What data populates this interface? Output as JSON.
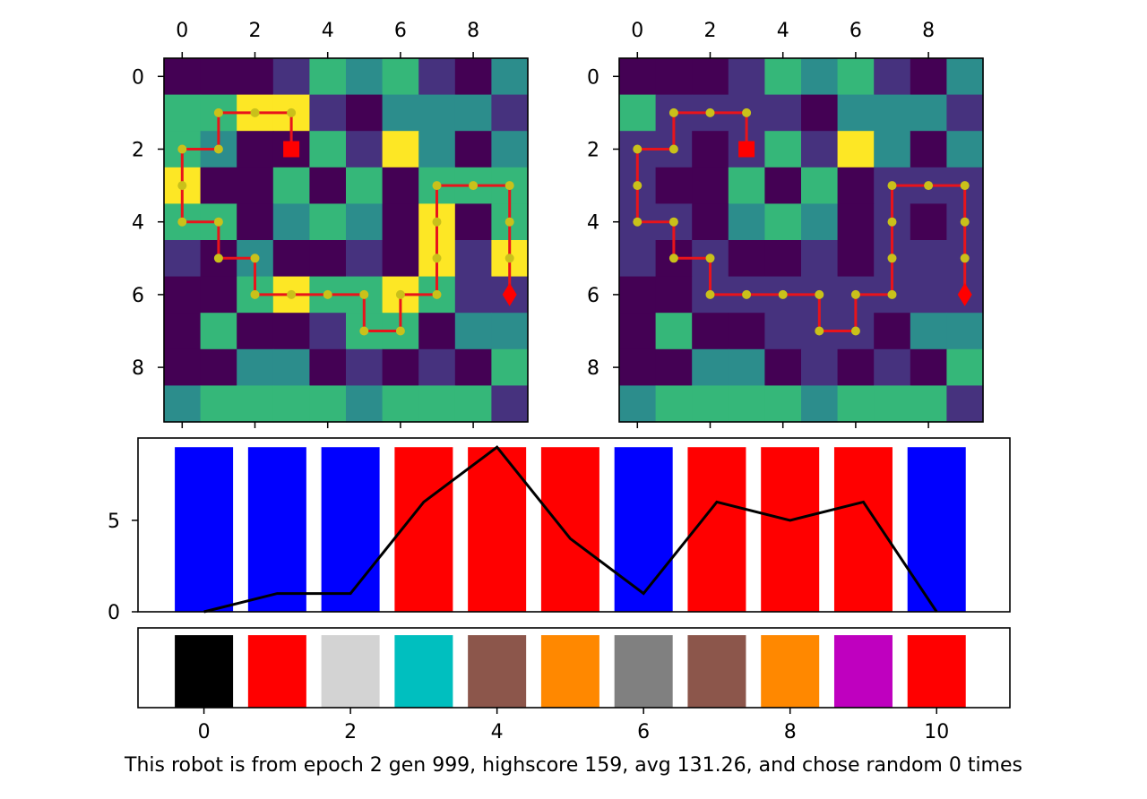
{
  "caption": "This robot is from epoch 2 gen 999, highscore 159, avg 131.26, and chose random 0 times",
  "chart_data": [
    {
      "type": "heatmap",
      "xticks": [
        "0",
        "2",
        "4",
        "6",
        "8"
      ],
      "yticks": [
        "0",
        "2",
        "4",
        "6",
        "8"
      ],
      "colormap": "viridis",
      "vmin": 0,
      "vmax": 4,
      "grid": [
        [
          1,
          1,
          1,
          0,
          3,
          2,
          3,
          0,
          1,
          2
        ],
        [
          3,
          3,
          4,
          4,
          0,
          1,
          2,
          2,
          2,
          0
        ],
        [
          3,
          2,
          1,
          1,
          3,
          0,
          4,
          2,
          1,
          2
        ],
        [
          4,
          1,
          1,
          3,
          1,
          3,
          1,
          3,
          3,
          3
        ],
        [
          3,
          3,
          1,
          2,
          3,
          2,
          1,
          4,
          1,
          3
        ],
        [
          0,
          1,
          2,
          1,
          1,
          0,
          1,
          4,
          0,
          4
        ],
        [
          1,
          1,
          3,
          4,
          3,
          3,
          4,
          3,
          0,
          0
        ],
        [
          1,
          3,
          1,
          1,
          0,
          3,
          3,
          1,
          2,
          2
        ],
        [
          1,
          1,
          2,
          2,
          1,
          0,
          1,
          0,
          1,
          3
        ],
        [
          2,
          3,
          3,
          3,
          3,
          2,
          3,
          3,
          3,
          0
        ]
      ],
      "path": [
        [
          3,
          2
        ],
        [
          3,
          1
        ],
        [
          2,
          1
        ],
        [
          1,
          1
        ],
        [
          1,
          2
        ],
        [
          0,
          2
        ],
        [
          0,
          3
        ],
        [
          0,
          4
        ],
        [
          1,
          4
        ],
        [
          1,
          5
        ],
        [
          2,
          5
        ],
        [
          2,
          6
        ],
        [
          3,
          6
        ],
        [
          4,
          6
        ],
        [
          5,
          6
        ],
        [
          5,
          7
        ],
        [
          6,
          7
        ],
        [
          6,
          6
        ],
        [
          7,
          6
        ],
        [
          7,
          5
        ],
        [
          7,
          4
        ],
        [
          7,
          3
        ],
        [
          8,
          3
        ],
        [
          9,
          3
        ],
        [
          9,
          4
        ],
        [
          9,
          5
        ],
        [
          9,
          6
        ]
      ],
      "start": [
        3,
        2
      ],
      "end": [
        9,
        6
      ]
    },
    {
      "type": "heatmap",
      "xticks": [
        "0",
        "2",
        "4",
        "6",
        "8"
      ],
      "yticks": [
        "0",
        "2",
        "4",
        "6",
        "8"
      ],
      "colormap": "viridis",
      "vmin": 0,
      "vmax": 4,
      "grid": [
        [
          1,
          1,
          1,
          0,
          3,
          2,
          3,
          0,
          1,
          2
        ],
        [
          3,
          0,
          0,
          0,
          0,
          1,
          2,
          2,
          2,
          0
        ],
        [
          0,
          0,
          1,
          0,
          3,
          0,
          4,
          2,
          1,
          2
        ],
        [
          0,
          1,
          1,
          3,
          1,
          3,
          1,
          0,
          0,
          0
        ],
        [
          0,
          0,
          1,
          2,
          3,
          2,
          1,
          0,
          1,
          0
        ],
        [
          0,
          1,
          0,
          1,
          1,
          0,
          1,
          0,
          0,
          0
        ],
        [
          1,
          1,
          0,
          0,
          0,
          0,
          0,
          0,
          0,
          0
        ],
        [
          1,
          3,
          1,
          1,
          0,
          0,
          0,
          1,
          2,
          2
        ],
        [
          1,
          1,
          2,
          2,
          1,
          0,
          1,
          0,
          1,
          3
        ],
        [
          2,
          3,
          3,
          3,
          3,
          2,
          3,
          3,
          3,
          0
        ]
      ],
      "path": [
        [
          3,
          2
        ],
        [
          3,
          1
        ],
        [
          2,
          1
        ],
        [
          1,
          1
        ],
        [
          1,
          2
        ],
        [
          0,
          2
        ],
        [
          0,
          3
        ],
        [
          0,
          4
        ],
        [
          1,
          4
        ],
        [
          1,
          5
        ],
        [
          2,
          5
        ],
        [
          2,
          6
        ],
        [
          3,
          6
        ],
        [
          4,
          6
        ],
        [
          5,
          6
        ],
        [
          5,
          7
        ],
        [
          6,
          7
        ],
        [
          6,
          6
        ],
        [
          7,
          6
        ],
        [
          7,
          5
        ],
        [
          7,
          4
        ],
        [
          7,
          3
        ],
        [
          8,
          3
        ],
        [
          9,
          3
        ],
        [
          9,
          4
        ],
        [
          9,
          5
        ],
        [
          9,
          6
        ]
      ],
      "start": [
        3,
        2
      ],
      "end": [
        9,
        6
      ]
    },
    {
      "type": "bar",
      "x": [
        0,
        1,
        2,
        3,
        4,
        5,
        6,
        7,
        8,
        9,
        10
      ],
      "values": [
        9,
        9,
        9,
        9,
        9,
        9,
        9,
        9,
        9,
        9,
        9
      ],
      "bar_colors": [
        "#0000ff",
        "#0000ff",
        "#0000ff",
        "#ff0000",
        "#ff0000",
        "#ff0000",
        "#0000ff",
        "#ff0000",
        "#ff0000",
        "#ff0000",
        "#0000ff"
      ],
      "line": {
        "color": "#000000",
        "values": [
          0,
          1,
          1,
          6,
          9,
          4,
          1,
          6,
          5,
          6,
          0
        ]
      },
      "yticks": [
        "0",
        "5"
      ],
      "ylim": [
        0,
        9.5
      ],
      "xlim": [
        -0.9,
        11
      ]
    },
    {
      "type": "bar",
      "x": [
        0,
        1,
        2,
        3,
        4,
        5,
        6,
        7,
        8,
        9,
        10
      ],
      "values": [
        1,
        1,
        1,
        1,
        1,
        1,
        1,
        1,
        1,
        1,
        1
      ],
      "bar_colors": [
        "#000000",
        "#ff0000",
        "#d3d3d3",
        "#00bfbf",
        "#8c564b",
        "#ff8800",
        "#808080",
        "#8c564b",
        "#ff8800",
        "#bf00bf",
        "#ff0000"
      ],
      "xticks": [
        "0",
        "2",
        "4",
        "6",
        "8",
        "10"
      ],
      "ylim": [
        0,
        1.1
      ],
      "xlim": [
        -0.9,
        11
      ]
    }
  ]
}
